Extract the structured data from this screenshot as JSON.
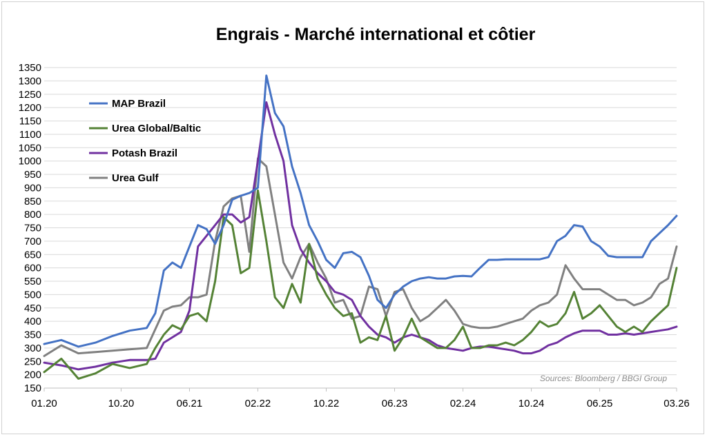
{
  "chart_data": {
    "type": "line",
    "title": "Engrais - Marché international et côtier",
    "source": "Sources: Bloomberg / BBGI Group",
    "xlabel": "",
    "ylabel": "",
    "ylim": [
      150,
      1350
    ],
    "yticks": [
      150,
      200,
      250,
      300,
      350,
      400,
      450,
      500,
      550,
      600,
      650,
      700,
      750,
      800,
      850,
      900,
      950,
      1000,
      1050,
      1100,
      1150,
      1200,
      1250,
      1300,
      1350
    ],
    "x_range": [
      "2020-01",
      "2026-03"
    ],
    "xticks": [
      {
        "label": "01.20",
        "date": "2020-01"
      },
      {
        "label": "10.20",
        "date": "2020-10"
      },
      {
        "label": "06.21",
        "date": "2021-06"
      },
      {
        "label": "02.22",
        "date": "2022-02"
      },
      {
        "label": "10.22",
        "date": "2022-10"
      },
      {
        "label": "06.23",
        "date": "2023-06"
      },
      {
        "label": "02.24",
        "date": "2024-02"
      },
      {
        "label": "10.24",
        "date": "2024-10"
      },
      {
        "label": "06.25",
        "date": "2025-06"
      },
      {
        "label": "03.26",
        "date": "2026-03"
      }
    ],
    "legend_position": "top-left",
    "grid": "horizontal",
    "series": [
      {
        "name": "MAP Brazil",
        "color": "#4472c4",
        "x": [
          "2020-01",
          "2020-03",
          "2020-05",
          "2020-07",
          "2020-09",
          "2020-11",
          "2021-01",
          "2021-02",
          "2021-03",
          "2021-04",
          "2021-05",
          "2021-06",
          "2021-07",
          "2021-08",
          "2021-09",
          "2021-10",
          "2021-11",
          "2021-12",
          "2022-01",
          "2022-02",
          "2022-03",
          "2022-04",
          "2022-05",
          "2022-06",
          "2022-07",
          "2022-08",
          "2022-09",
          "2022-10",
          "2022-11",
          "2022-12",
          "2023-01",
          "2023-02",
          "2023-03",
          "2023-04",
          "2023-05",
          "2023-06",
          "2023-07",
          "2023-08",
          "2023-09",
          "2023-10",
          "2023-11",
          "2023-12",
          "2024-01",
          "2024-02",
          "2024-03",
          "2024-04",
          "2024-05",
          "2024-06",
          "2024-07",
          "2024-08",
          "2024-09",
          "2024-10",
          "2024-11",
          "2024-12",
          "2025-01",
          "2025-02",
          "2025-03",
          "2025-04",
          "2025-05",
          "2025-06",
          "2025-07",
          "2025-08",
          "2025-09",
          "2025-10",
          "2025-11",
          "2025-12",
          "2026-01",
          "2026-02",
          "2026-03"
        ],
        "values": [
          315,
          330,
          305,
          320,
          345,
          365,
          375,
          430,
          590,
          620,
          600,
          680,
          760,
          745,
          690,
          760,
          855,
          870,
          880,
          900,
          1320,
          1180,
          1130,
          980,
          880,
          760,
          700,
          630,
          600,
          655,
          660,
          640,
          570,
          480,
          450,
          500,
          530,
          550,
          560,
          565,
          560,
          560,
          568,
          570,
          568,
          600,
          630,
          630,
          632,
          632,
          632,
          632,
          632,
          640,
          700,
          720,
          760,
          755,
          700,
          680,
          645,
          640,
          640,
          640,
          640,
          700,
          730,
          760,
          795
        ]
      },
      {
        "name": "Urea Global/Baltic",
        "color": "#548235",
        "x": [
          "2020-01",
          "2020-03",
          "2020-05",
          "2020-07",
          "2020-09",
          "2020-11",
          "2021-01",
          "2021-02",
          "2021-03",
          "2021-04",
          "2021-05",
          "2021-06",
          "2021-07",
          "2021-08",
          "2021-09",
          "2021-10",
          "2021-11",
          "2021-12",
          "2022-01",
          "2022-02",
          "2022-03",
          "2022-04",
          "2022-05",
          "2022-06",
          "2022-07",
          "2022-08",
          "2022-09",
          "2022-10",
          "2022-11",
          "2022-12",
          "2023-01",
          "2023-02",
          "2023-03",
          "2023-04",
          "2023-05",
          "2023-06",
          "2023-07",
          "2023-08",
          "2023-09",
          "2023-10",
          "2023-11",
          "2023-12",
          "2024-01",
          "2024-02",
          "2024-03",
          "2024-04",
          "2024-05",
          "2024-06",
          "2024-07",
          "2024-08",
          "2024-09",
          "2024-10",
          "2024-11",
          "2024-12",
          "2025-01",
          "2025-02",
          "2025-03",
          "2025-04",
          "2025-05",
          "2025-06",
          "2025-07",
          "2025-08",
          "2025-09",
          "2025-10",
          "2025-11",
          "2025-12",
          "2026-01",
          "2026-02",
          "2026-03"
        ],
        "values": [
          210,
          260,
          185,
          205,
          240,
          225,
          240,
          300,
          350,
          385,
          370,
          420,
          430,
          400,
          550,
          790,
          760,
          580,
          600,
          890,
          700,
          490,
          450,
          540,
          470,
          690,
          560,
          500,
          450,
          420,
          430,
          320,
          340,
          330,
          420,
          290,
          340,
          410,
          340,
          320,
          300,
          300,
          330,
          380,
          300,
          300,
          310,
          310,
          320,
          310,
          330,
          360,
          400,
          380,
          390,
          430,
          510,
          410,
          430,
          460,
          420,
          380,
          360,
          380,
          360,
          400,
          430,
          460,
          600
        ]
      },
      {
        "name": "Potash Brazil",
        "color": "#7030a0",
        "x": [
          "2020-01",
          "2020-03",
          "2020-05",
          "2020-07",
          "2020-09",
          "2020-11",
          "2021-01",
          "2021-02",
          "2021-03",
          "2021-04",
          "2021-05",
          "2021-06",
          "2021-07",
          "2021-08",
          "2021-09",
          "2021-10",
          "2021-11",
          "2021-12",
          "2022-01",
          "2022-02",
          "2022-03",
          "2022-04",
          "2022-05",
          "2022-06",
          "2022-07",
          "2022-08",
          "2022-09",
          "2022-10",
          "2022-11",
          "2022-12",
          "2023-01",
          "2023-02",
          "2023-03",
          "2023-04",
          "2023-05",
          "2023-06",
          "2023-07",
          "2023-08",
          "2023-09",
          "2023-10",
          "2023-11",
          "2023-12",
          "2024-01",
          "2024-02",
          "2024-03",
          "2024-04",
          "2024-05",
          "2024-06",
          "2024-07",
          "2024-08",
          "2024-09",
          "2024-10",
          "2024-11",
          "2024-12",
          "2025-01",
          "2025-02",
          "2025-03",
          "2025-04",
          "2025-05",
          "2025-06",
          "2025-07",
          "2025-08",
          "2025-09",
          "2025-10",
          "2025-11",
          "2025-12",
          "2026-01",
          "2026-02",
          "2026-03"
        ],
        "values": [
          245,
          235,
          220,
          230,
          245,
          255,
          255,
          260,
          320,
          340,
          360,
          440,
          680,
          720,
          760,
          800,
          800,
          770,
          790,
          1000,
          1220,
          1100,
          1000,
          760,
          670,
          620,
          580,
          550,
          510,
          500,
          480,
          420,
          380,
          350,
          340,
          320,
          340,
          350,
          340,
          330,
          310,
          300,
          295,
          290,
          300,
          305,
          305,
          300,
          295,
          290,
          280,
          280,
          290,
          310,
          320,
          340,
          355,
          365,
          365,
          365,
          350,
          350,
          355,
          350,
          355,
          360,
          365,
          370,
          380
        ]
      },
      {
        "name": "Urea Gulf",
        "color": "#808080",
        "x": [
          "2020-01",
          "2020-03",
          "2020-05",
          "2020-07",
          "2020-09",
          "2020-11",
          "2021-01",
          "2021-02",
          "2021-03",
          "2021-04",
          "2021-05",
          "2021-06",
          "2021-07",
          "2021-08",
          "2021-09",
          "2021-10",
          "2021-11",
          "2021-12",
          "2022-01",
          "2022-02",
          "2022-03",
          "2022-04",
          "2022-05",
          "2022-06",
          "2022-07",
          "2022-08",
          "2022-09",
          "2022-10",
          "2022-11",
          "2022-12",
          "2023-01",
          "2023-02",
          "2023-03",
          "2023-04",
          "2023-05",
          "2023-06",
          "2023-07",
          "2023-08",
          "2023-09",
          "2023-10",
          "2023-11",
          "2023-12",
          "2024-01",
          "2024-02",
          "2024-03",
          "2024-04",
          "2024-05",
          "2024-06",
          "2024-07",
          "2024-08",
          "2024-09",
          "2024-10",
          "2024-11",
          "2024-12",
          "2025-01",
          "2025-02",
          "2025-03",
          "2025-04",
          "2025-05",
          "2025-06",
          "2025-07",
          "2025-08",
          "2025-09",
          "2025-10",
          "2025-11",
          "2025-12",
          "2026-01",
          "2026-02",
          "2026-03"
        ],
        "values": [
          270,
          310,
          280,
          285,
          290,
          295,
          300,
          370,
          440,
          455,
          460,
          490,
          490,
          500,
          700,
          830,
          860,
          870,
          660,
          1010,
          980,
          800,
          620,
          560,
          640,
          690,
          620,
          560,
          470,
          480,
          410,
          420,
          530,
          520,
          420,
          510,
          520,
          450,
          400,
          420,
          450,
          480,
          440,
          390,
          380,
          375,
          375,
          380,
          390,
          400,
          410,
          440,
          460,
          470,
          500,
          610,
          560,
          520,
          520,
          520,
          500,
          480,
          480,
          460,
          470,
          490,
          540,
          560,
          680
        ]
      }
    ]
  }
}
